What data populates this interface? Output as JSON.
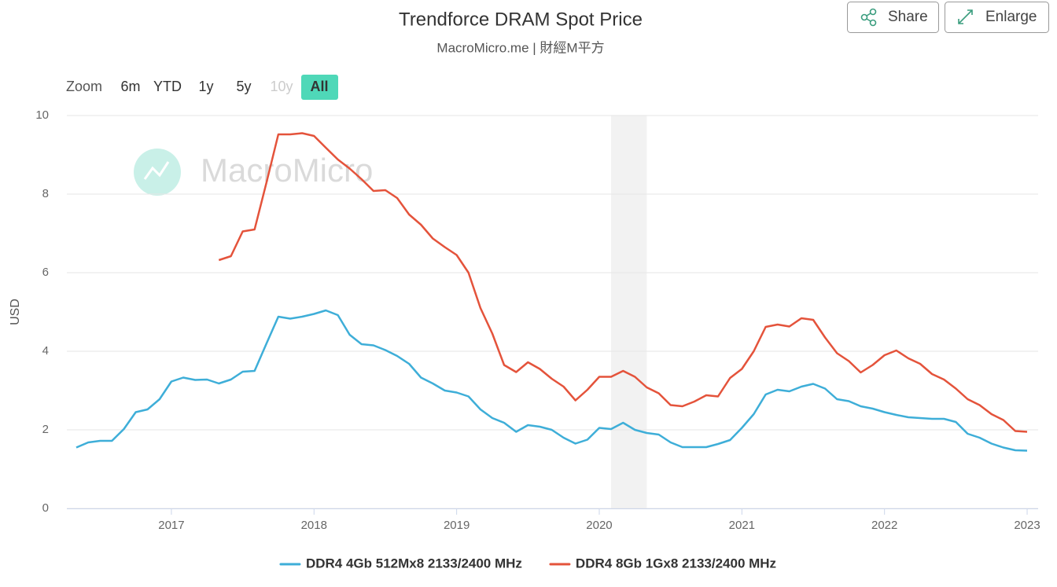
{
  "chart_data": {
    "type": "line",
    "title": "Trendforce DRAM Spot Price",
    "subtitle": "MacroMicro.me | 財經M平方",
    "watermark": "MacroMicro",
    "ylabel": "USD",
    "buttons": [
      "Share",
      "Enlarge"
    ],
    "zoom_label": "Zoom",
    "zoom_options": [
      "6m",
      "YTD",
      "1y",
      "5y",
      "10y",
      "All"
    ],
    "zoom_disabled": [
      4
    ],
    "zoom_selected": 5,
    "x": [
      2016.333,
      2016.417,
      2016.5,
      2016.583,
      2016.667,
      2016.75,
      2016.833,
      2016.917,
      2017,
      2017.083,
      2017.167,
      2017.25,
      2017.333,
      2017.417,
      2017.5,
      2017.583,
      2017.667,
      2017.75,
      2017.833,
      2017.917,
      2018,
      2018.083,
      2018.167,
      2018.25,
      2018.333,
      2018.417,
      2018.5,
      2018.583,
      2018.667,
      2018.75,
      2018.833,
      2018.917,
      2019,
      2019.083,
      2019.167,
      2019.25,
      2019.333,
      2019.417,
      2019.5,
      2019.583,
      2019.667,
      2019.75,
      2019.833,
      2019.917,
      2020,
      2020.083,
      2020.167,
      2020.25,
      2020.333,
      2020.417,
      2020.5,
      2020.583,
      2020.667,
      2020.75,
      2020.833,
      2020.917,
      2021,
      2021.083,
      2021.167,
      2021.25,
      2021.333,
      2021.417,
      2021.5,
      2021.583,
      2021.667,
      2021.75,
      2021.833,
      2021.917,
      2022,
      2022.083,
      2022.167,
      2022.25,
      2022.333,
      2022.417,
      2022.5,
      2022.583,
      2022.667,
      2022.75,
      2022.833,
      2022.917,
      2023
    ],
    "series": [
      {
        "name": "DDR4 4Gb 512Mx8 2133/2400 MHz",
        "color": "#3eaed8",
        "values": [
          1.55,
          1.68,
          1.72,
          1.72,
          2.02,
          2.45,
          2.52,
          2.78,
          3.23,
          3.33,
          3.27,
          3.28,
          3.18,
          3.28,
          3.48,
          3.5,
          4.2,
          4.88,
          4.83,
          4.88,
          4.95,
          5.04,
          4.92,
          4.42,
          4.18,
          4.15,
          4.03,
          3.88,
          3.68,
          3.33,
          3.18,
          3.0,
          2.95,
          2.85,
          2.52,
          2.3,
          2.18,
          1.95,
          2.12,
          2.08,
          2.0,
          1.8,
          1.65,
          1.75,
          2.05,
          2.02,
          2.18,
          2.0,
          1.92,
          1.88,
          1.68,
          1.56,
          1.56,
          1.56,
          1.64,
          1.74,
          2.05,
          2.4,
          2.9,
          3.02,
          2.98,
          3.1,
          3.17,
          3.05,
          2.78,
          2.73,
          2.6,
          2.54,
          2.45,
          2.38,
          2.32,
          2.3,
          2.28,
          2.28,
          2.2,
          1.9,
          1.8,
          1.65,
          1.55,
          1.48,
          1.47
        ]
      },
      {
        "name": "DDR4 8Gb 1Gx8 2133/2400 MHz",
        "color": "#e4533b",
        "values": [
          null,
          null,
          null,
          null,
          null,
          null,
          null,
          null,
          null,
          null,
          null,
          null,
          6.32,
          6.42,
          7.05,
          7.1,
          8.3,
          9.52,
          9.52,
          9.55,
          9.48,
          9.18,
          8.88,
          8.65,
          8.38,
          8.08,
          8.1,
          7.9,
          7.48,
          7.22,
          6.87,
          6.65,
          6.45,
          6.0,
          5.1,
          4.45,
          3.65,
          3.47,
          3.72,
          3.55,
          3.3,
          3.1,
          2.75,
          3.02,
          3.35,
          3.35,
          3.5,
          3.35,
          3.08,
          2.93,
          2.63,
          2.6,
          2.72,
          2.88,
          2.85,
          3.32,
          3.55,
          4.0,
          4.62,
          4.68,
          4.63,
          4.84,
          4.8,
          4.35,
          3.95,
          3.75,
          3.46,
          3.65,
          3.9,
          4.02,
          3.82,
          3.68,
          3.42,
          3.28,
          3.05,
          2.78,
          2.63,
          2.4,
          2.25,
          1.97,
          1.95
        ]
      }
    ],
    "shaded_ranges": [
      [
        2020.083,
        2020.333
      ]
    ],
    "shade_color": "#f2f2f2",
    "xlim": [
      2016.267,
      2023.077
    ],
    "xticks": [
      2017,
      2018,
      2019,
      2020,
      2021,
      2022,
      2023
    ],
    "ylim": [
      0,
      10
    ],
    "yticks": [
      0,
      2,
      4,
      6,
      8,
      10
    ],
    "grid": true,
    "legend": "bottom"
  }
}
